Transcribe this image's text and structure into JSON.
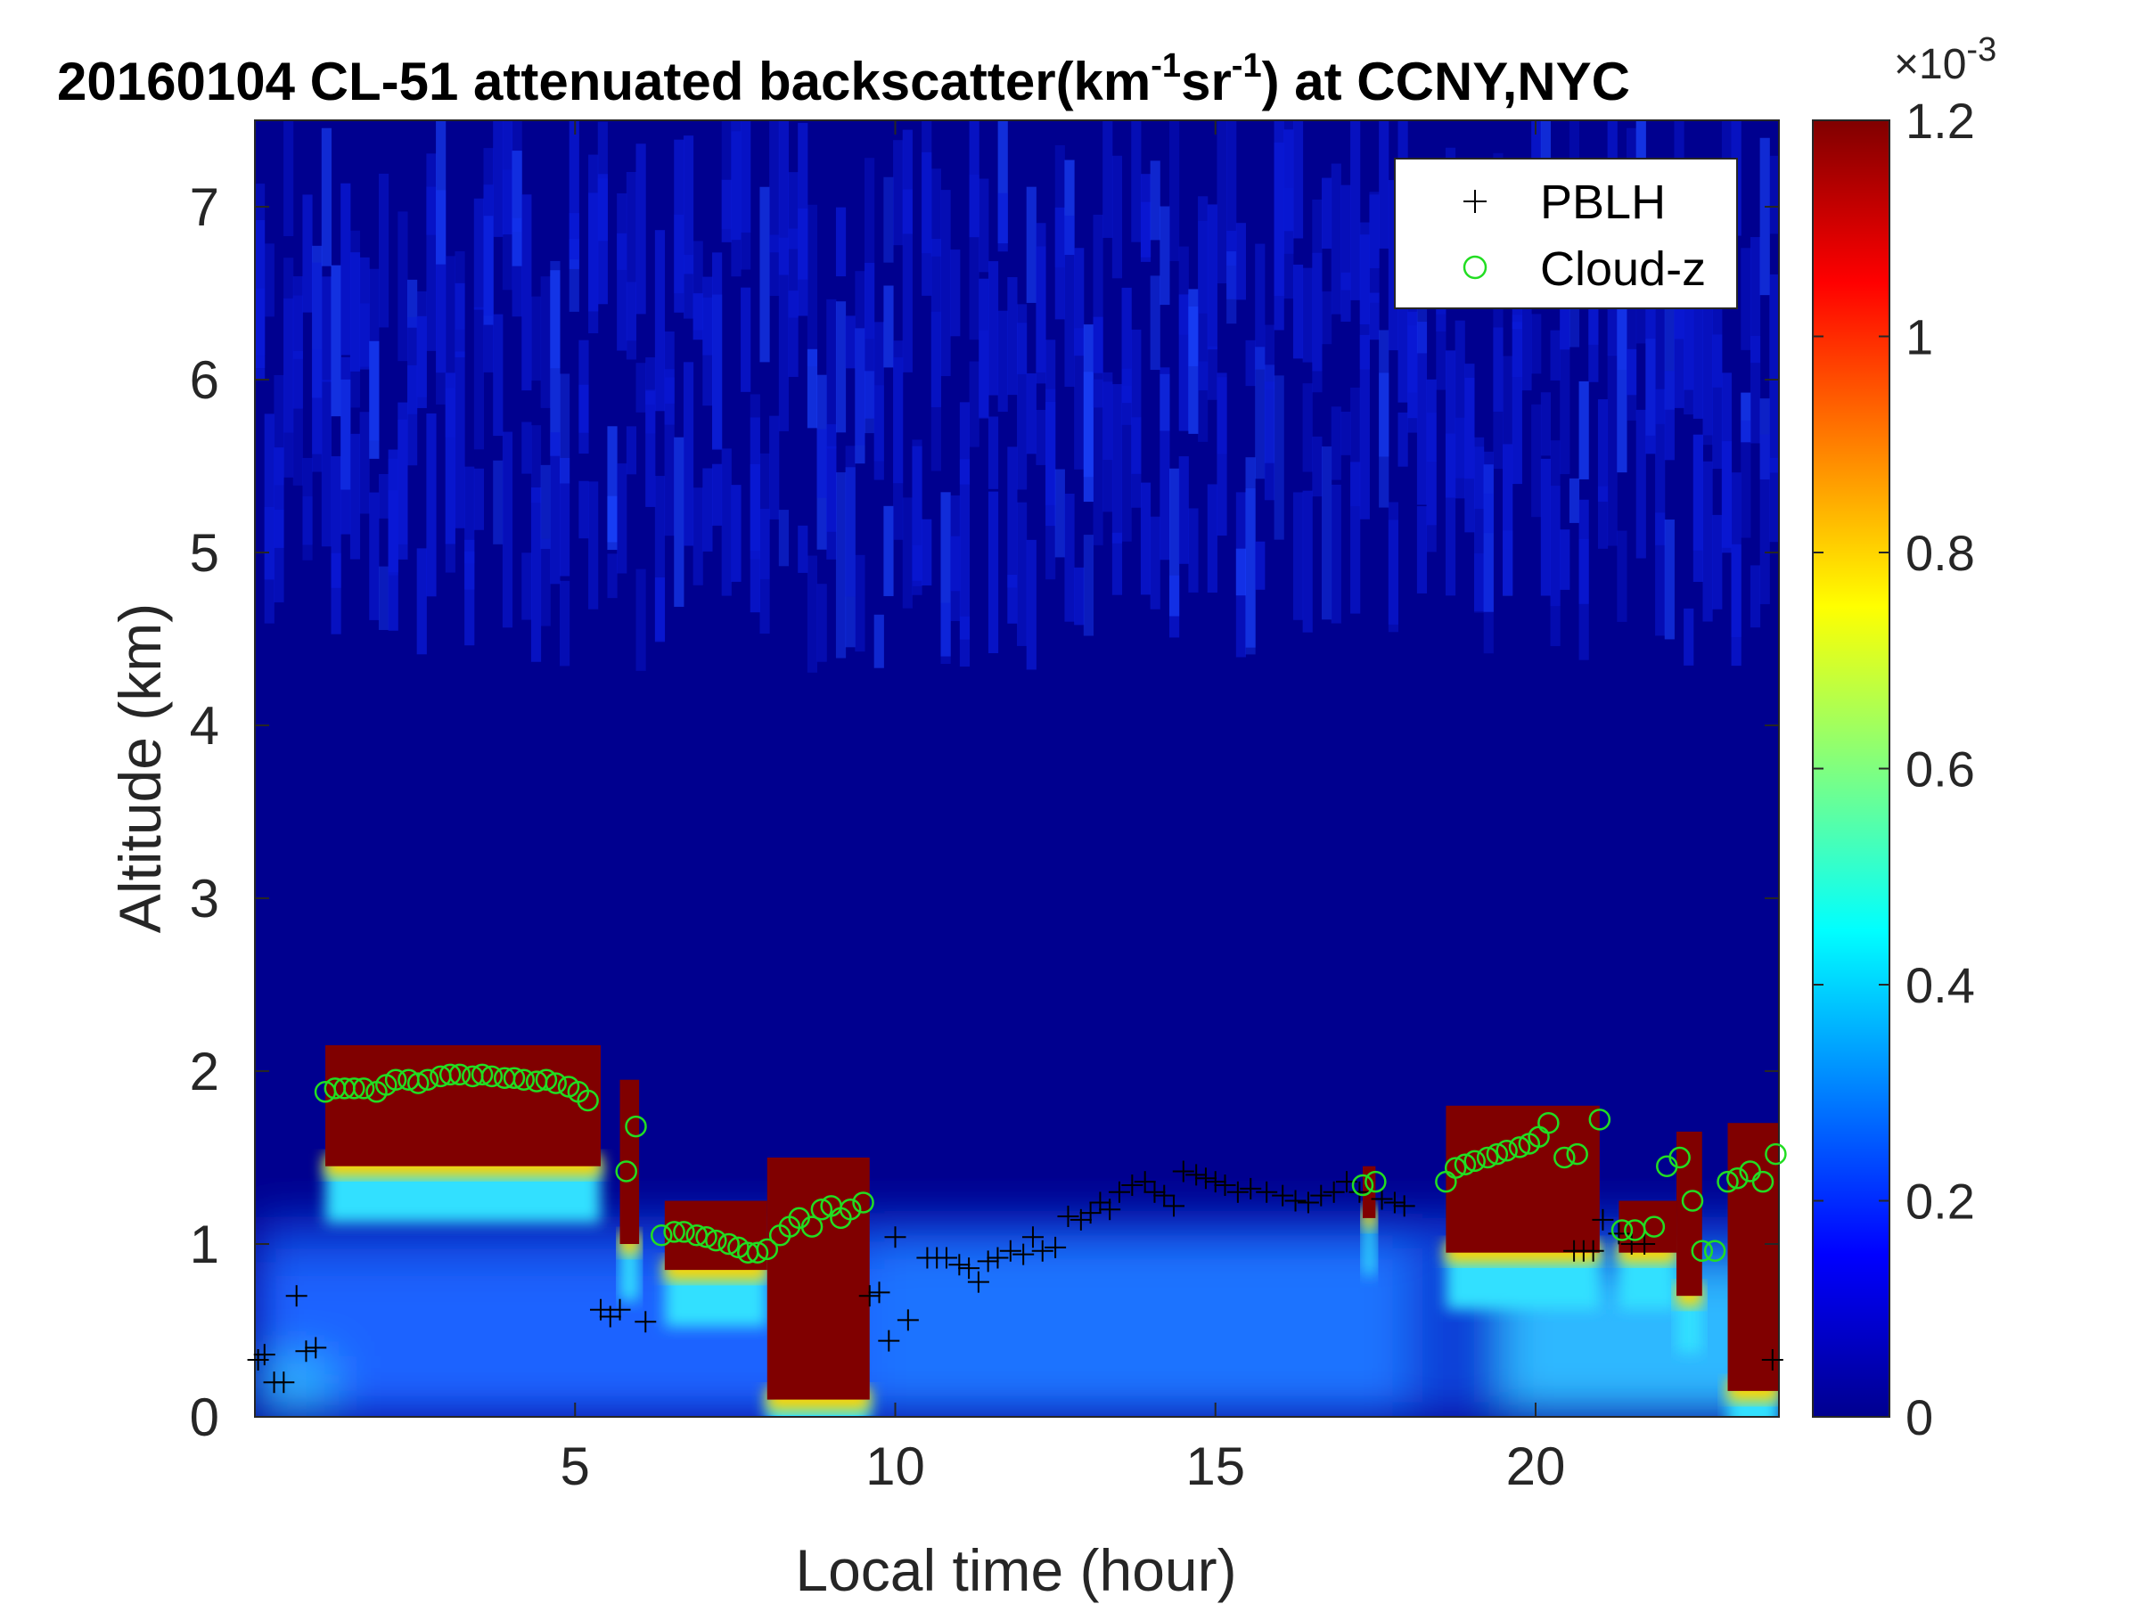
{
  "chart_data": {
    "type": "heatmap",
    "title_main": "20160104  CL-51 attenuated backscatter(km",
    "title_exp1": "-1",
    "title_mid": "sr",
    "title_exp2": "-1",
    "title_end": ") at CCNY,NYC",
    "xlabel": "Local time (hour)",
    "ylabel": "Altitude (km)",
    "xlim": [
      0,
      23.8
    ],
    "ylim": [
      0,
      7.5
    ],
    "xticks": [
      5,
      10,
      15,
      20
    ],
    "yticks": [
      0,
      1,
      2,
      3,
      4,
      5,
      6,
      7
    ],
    "colorbar": {
      "colormap": "jet",
      "clim": [
        0,
        0.0012
      ],
      "ticks": [
        0,
        0.2,
        0.4,
        0.6,
        0.8,
        1,
        1.2
      ],
      "multiplier_base": "×10",
      "multiplier_exp": "-3"
    },
    "legend": {
      "placement": "top-right",
      "entries": [
        {
          "label": "PBLH",
          "marker": "+",
          "color": "#000000"
        },
        {
          "label": "Cloud-z",
          "marker": "o",
          "color": "#22dd22"
        }
      ]
    },
    "cloud_layers": [
      {
        "t0": 1.1,
        "t1": 5.4,
        "base": 1.45,
        "top": 2.15
      },
      {
        "t0": 5.7,
        "t1": 6.0,
        "base": 1.0,
        "top": 1.95
      },
      {
        "t0": 6.4,
        "t1": 8.0,
        "base": 0.85,
        "top": 1.25
      },
      {
        "t0": 8.0,
        "t1": 9.6,
        "base": 0.1,
        "top": 1.5
      },
      {
        "t0": 17.3,
        "t1": 17.5,
        "base": 1.15,
        "top": 1.45
      },
      {
        "t0": 18.6,
        "t1": 21.0,
        "base": 0.95,
        "top": 1.8
      },
      {
        "t0": 21.3,
        "t1": 22.2,
        "base": 0.95,
        "top": 1.25
      },
      {
        "t0": 22.2,
        "t1": 22.6,
        "base": 0.7,
        "top": 1.65
      },
      {
        "t0": 23.0,
        "t1": 23.8,
        "base": 0.15,
        "top": 1.7
      }
    ],
    "series": [
      {
        "name": "PBLH",
        "x": [
          0.05,
          0.15,
          0.3,
          0.45,
          0.65,
          0.8,
          0.95,
          5.4,
          5.55,
          5.7,
          6.1,
          9.6,
          9.75,
          9.9,
          10.0,
          10.2,
          10.5,
          10.65,
          10.8,
          11.0,
          11.15,
          11.3,
          11.45,
          11.6,
          11.8,
          12.0,
          12.15,
          12.3,
          12.5,
          12.7,
          12.9,
          13.05,
          13.2,
          13.35,
          13.5,
          13.7,
          13.9,
          14.05,
          14.2,
          14.35,
          14.5,
          14.7,
          14.85,
          15.0,
          15.15,
          15.35,
          15.55,
          15.8,
          16.05,
          16.25,
          16.45,
          16.65,
          16.85,
          17.05,
          17.25,
          17.6,
          17.8,
          17.95,
          20.6,
          20.75,
          20.9,
          21.05,
          21.3,
          21.5,
          21.7,
          23.7
        ],
        "y": [
          0.33,
          0.36,
          0.2,
          0.2,
          0.7,
          0.38,
          0.4,
          0.62,
          0.58,
          0.62,
          0.55,
          0.7,
          0.72,
          0.44,
          1.04,
          0.56,
          0.92,
          0.92,
          0.92,
          0.88,
          0.86,
          0.78,
          0.9,
          0.92,
          0.96,
          0.94,
          1.04,
          0.96,
          0.98,
          1.16,
          1.14,
          1.18,
          1.24,
          1.2,
          1.3,
          1.34,
          1.36,
          1.3,
          1.28,
          1.22,
          1.42,
          1.4,
          1.38,
          1.36,
          1.34,
          1.3,
          1.32,
          1.3,
          1.28,
          1.25,
          1.24,
          1.28,
          1.3,
          1.36,
          1.3,
          1.26,
          1.24,
          1.22,
          0.96,
          0.96,
          0.96,
          1.14,
          1.06,
          1.0,
          1.0,
          0.33
        ]
      },
      {
        "name": "Cloud-z",
        "x": [
          1.1,
          1.25,
          1.4,
          1.55,
          1.7,
          1.9,
          2.05,
          2.2,
          2.4,
          2.55,
          2.7,
          2.9,
          3.05,
          3.2,
          3.4,
          3.55,
          3.7,
          3.9,
          4.05,
          4.2,
          4.4,
          4.55,
          4.7,
          4.9,
          5.05,
          5.2,
          5.8,
          5.95,
          6.35,
          6.55,
          6.7,
          6.9,
          7.05,
          7.2,
          7.4,
          7.55,
          7.7,
          7.85,
          8.0,
          8.2,
          8.35,
          8.5,
          8.7,
          8.85,
          9.0,
          9.15,
          9.3,
          9.5,
          17.3,
          17.5,
          18.6,
          18.75,
          18.9,
          19.05,
          19.25,
          19.4,
          19.55,
          19.75,
          19.9,
          20.05,
          20.2,
          20.45,
          20.65,
          21.0,
          21.35,
          21.55,
          21.85,
          22.05,
          22.25,
          22.45,
          22.6,
          22.8,
          23.0,
          23.15,
          23.35,
          23.55,
          23.75
        ],
        "y": [
          1.88,
          1.9,
          1.9,
          1.9,
          1.9,
          1.88,
          1.92,
          1.95,
          1.95,
          1.93,
          1.95,
          1.97,
          1.98,
          1.98,
          1.97,
          1.98,
          1.97,
          1.96,
          1.96,
          1.95,
          1.94,
          1.95,
          1.93,
          1.91,
          1.88,
          1.83,
          1.42,
          1.68,
          1.05,
          1.07,
          1.07,
          1.05,
          1.04,
          1.02,
          1.0,
          0.98,
          0.95,
          0.95,
          0.97,
          1.05,
          1.1,
          1.15,
          1.1,
          1.2,
          1.22,
          1.15,
          1.2,
          1.24,
          1.34,
          1.36,
          1.36,
          1.44,
          1.46,
          1.48,
          1.5,
          1.52,
          1.54,
          1.56,
          1.58,
          1.62,
          1.7,
          1.5,
          1.52,
          1.72,
          1.08,
          1.08,
          1.1,
          1.45,
          1.5,
          1.25,
          0.96,
          0.96,
          1.36,
          1.38,
          1.42,
          1.36,
          1.52
        ]
      }
    ]
  }
}
